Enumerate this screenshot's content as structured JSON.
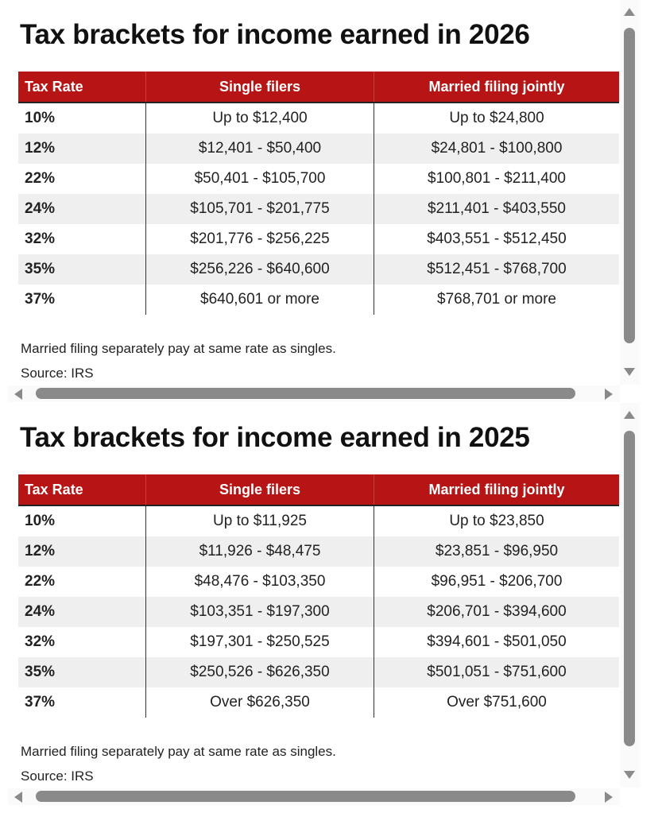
{
  "headers": [
    "Tax Rate",
    "Single filers",
    "Married filing jointly"
  ],
  "colors": {
    "header_bg": "#b71515",
    "scrollbar": "#8a8a8a",
    "alt_row": "#efefef"
  },
  "panels": [
    {
      "title": "Tax brackets for income earned in 2026",
      "rows": [
        [
          "10%",
          "Up to $12,400",
          "Up to $24,800"
        ],
        [
          "12%",
          "$12,401 - $50,400",
          "$24,801 - $100,800"
        ],
        [
          "22%",
          "$50,401 - $105,700",
          "$100,801 - $211,400"
        ],
        [
          "24%",
          "$105,701 - $201,775",
          "$211,401 - $403,550"
        ],
        [
          "32%",
          "$201,776 - $256,225",
          "$403,551 - $512,450"
        ],
        [
          "35%",
          "$256,226 - $640,600",
          "$512,451 - $768,700"
        ],
        [
          "37%",
          "$640,601 or more",
          "$768,701 or more"
        ]
      ],
      "note": "Married filing separately pay at same rate as singles.",
      "source": "Source: IRS"
    },
    {
      "title": "Tax brackets for income earned in 2025",
      "rows": [
        [
          "10%",
          "Up to $11,925",
          "Up to $23,850"
        ],
        [
          "12%",
          "$11,926 - $48,475",
          "$23,851 - $96,950"
        ],
        [
          "22%",
          "$48,476 - $103,350",
          "$96,951 - $206,700"
        ],
        [
          "24%",
          "$103,351 - $197,300",
          "$206,701 - $394,600"
        ],
        [
          "32%",
          "$197,301 - $250,525",
          "$394,601 - $501,050"
        ],
        [
          "35%",
          "$250,526 - $626,350",
          "$501,051 - $751,600"
        ],
        [
          "37%",
          "Over $626,350",
          "Over $751,600"
        ]
      ],
      "note": "Married filing separately pay at same rate as singles.",
      "source": "Source: IRS"
    }
  ]
}
